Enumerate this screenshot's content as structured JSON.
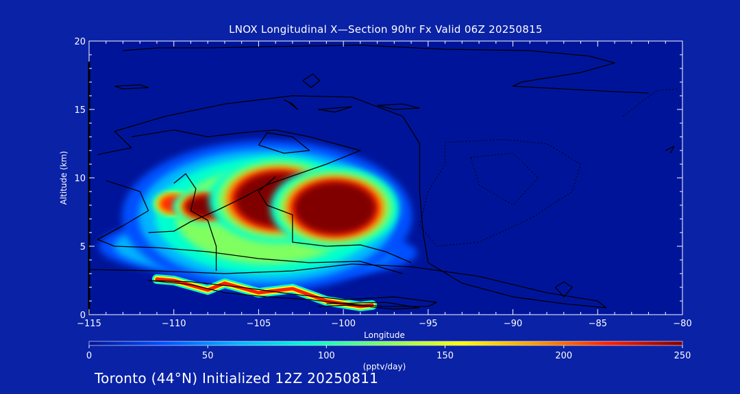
{
  "title": "LNOX Longitudinal X—Section 90hr  Fx Valid 06Z 20250815",
  "footer": "Toronto (44°N) Initialized 12Z 20250811",
  "colors": {
    "background": "#0a22a6",
    "field_background": "#00149a",
    "contour": "#000000",
    "frame": "#ffffff"
  },
  "chart_data": {
    "type": "heatmap",
    "xlabel": "Longitude",
    "ylabel": "Altitude (km)",
    "xlim": [
      -115,
      -80
    ],
    "ylim": [
      0,
      20
    ],
    "xticks": [
      -115,
      -110,
      -105,
      -100,
      -95,
      -90,
      -85,
      -80
    ],
    "xtick_labels": [
      "−115",
      "−110",
      "−105",
      "−100",
      "−95",
      "−90",
      "−85",
      "−80"
    ],
    "yticks": [
      0,
      5,
      10,
      15,
      20
    ],
    "ytick_labels": [
      "0",
      "5",
      "10",
      "15",
      "20"
    ],
    "colorbar": {
      "label": "(pptv/day)",
      "range": [
        0,
        250
      ],
      "ticks": [
        0,
        50,
        100,
        150,
        200,
        250
      ],
      "tick_labels": [
        "0",
        "50",
        "100",
        "150",
        "200",
        "250"
      ],
      "colors": [
        "#00149a",
        "#0050ff",
        "#00b4ff",
        "#00ffd0",
        "#80ff60",
        "#ffff00",
        "#ff9a00",
        "#ff2000",
        "#800000"
      ]
    },
    "blobs": [
      {
        "lon": -103.8,
        "alt": 8.4,
        "rx": 2.6,
        "ry": 2.0,
        "value": 250
      },
      {
        "lon": -100.5,
        "alt": 7.8,
        "rx": 2.4,
        "ry": 1.9,
        "value": 250
      },
      {
        "lon": -108.0,
        "alt": 7.9,
        "rx": 1.3,
        "ry": 0.8,
        "value": 235
      },
      {
        "lon": -110.0,
        "alt": 8.1,
        "rx": 0.8,
        "ry": 0.6,
        "value": 225
      },
      {
        "lon": -104.5,
        "alt": 7.2,
        "rx": 5.4,
        "ry": 3.5,
        "value": 115
      },
      {
        "lon": -106.5,
        "alt": 5.0,
        "rx": 5.0,
        "ry": 1.4,
        "value": 95
      },
      {
        "lon": -102.0,
        "alt": 4.5,
        "rx": 4.0,
        "ry": 1.1,
        "value": 85
      }
    ],
    "surface_band": {
      "value": 225,
      "points": [
        [
          -111.0,
          2.6
        ],
        [
          -110.0,
          2.5
        ],
        [
          -108.0,
          1.8
        ],
        [
          -107.0,
          2.3
        ],
        [
          -105.0,
          1.6
        ],
        [
          -103.0,
          1.9
        ],
        [
          -101.0,
          1.0
        ],
        [
          -99.0,
          0.6
        ],
        [
          -98.3,
          0.7
        ]
      ]
    },
    "contours_solid": [
      [
        [
          -113.0,
          19.3
        ],
        [
          -111.0,
          19.5
        ],
        [
          -108.0,
          19.5
        ],
        [
          -104.0,
          19.6
        ],
        [
          -99.0,
          19.7
        ],
        [
          -94.0,
          19.4
        ],
        [
          -89.0,
          19.3
        ],
        [
          -85.5,
          18.9
        ],
        [
          -84.0,
          18.4
        ],
        [
          -86.0,
          17.7
        ],
        [
          -89.5,
          17.0
        ],
        [
          -90.0,
          16.7
        ],
        [
          -87.0,
          16.5
        ],
        [
          -84.0,
          16.3
        ],
        [
          -82.0,
          16.2
        ]
      ],
      [
        [
          -114.5,
          11.7
        ],
        [
          -112.5,
          12.2
        ],
        [
          -113.5,
          13.4
        ],
        [
          -110.5,
          14.5
        ],
        [
          -107.0,
          15.4
        ],
        [
          -103.0,
          16.0
        ],
        [
          -99.5,
          15.9
        ],
        [
          -96.5,
          14.5
        ],
        [
          -95.5,
          12.5
        ],
        [
          -95.5,
          9.0
        ],
        [
          -95.3,
          6.0
        ],
        [
          -95.0,
          3.8
        ],
        [
          -93.0,
          2.3
        ],
        [
          -90.0,
          1.3
        ],
        [
          -87.0,
          0.8
        ],
        [
          -84.5,
          0.5
        ],
        [
          -85.0,
          1.0
        ],
        [
          -88.0,
          1.6
        ],
        [
          -92.0,
          2.8
        ],
        [
          -96.0,
          3.5
        ],
        [
          -99.5,
          3.7
        ],
        [
          -103.0,
          3.2
        ],
        [
          -107.0,
          3.0
        ],
        [
          -111.0,
          3.2
        ],
        [
          -115.0,
          3.3
        ]
      ],
      [
        [
          -114.0,
          9.8
        ],
        [
          -112.0,
          9.0
        ],
        [
          -111.5,
          7.6
        ],
        [
          -113.0,
          6.5
        ],
        [
          -114.5,
          5.5
        ],
        [
          -113.5,
          5.0
        ],
        [
          -111.0,
          4.9
        ],
        [
          -108.0,
          4.6
        ],
        [
          -105.0,
          4.1
        ],
        [
          -102.0,
          3.8
        ],
        [
          -99.0,
          3.9
        ],
        [
          -96.5,
          3.0
        ]
      ],
      [
        [
          -112.5,
          13.0
        ],
        [
          -110.0,
          13.5
        ],
        [
          -108.0,
          13.0
        ],
        [
          -106.0,
          13.3
        ],
        [
          -104.0,
          13.5
        ],
        [
          -102.0,
          13.0
        ],
        [
          -99.0,
          12.0
        ],
        [
          -101.0,
          11.0
        ],
        [
          -104.5,
          9.5
        ],
        [
          -106.0,
          8.5
        ],
        [
          -107.5,
          7.6
        ],
        [
          -109.0,
          6.8
        ],
        [
          -110.0,
          6.1
        ],
        [
          -111.5,
          6.0
        ]
      ],
      [
        [
          -110.0,
          9.6
        ],
        [
          -109.3,
          10.3
        ],
        [
          -108.7,
          9.2
        ],
        [
          -109.0,
          7.6
        ],
        [
          -108.0,
          6.9
        ],
        [
          -107.5,
          5.0
        ],
        [
          -107.5,
          3.2
        ]
      ],
      [
        [
          -104.0,
          10.1
        ],
        [
          -105.0,
          9.0
        ],
        [
          -104.5,
          8.0
        ],
        [
          -103.0,
          7.3
        ],
        [
          -103.0,
          5.3
        ],
        [
          -101.0,
          5.0
        ],
        [
          -99.0,
          5.1
        ],
        [
          -97.5,
          4.6
        ],
        [
          -96.0,
          3.8
        ]
      ],
      [
        [
          -111.5,
          2.5
        ],
        [
          -109.0,
          2.2
        ],
        [
          -107.0,
          1.6
        ],
        [
          -104.5,
          1.3
        ],
        [
          -102.0,
          1.1
        ],
        [
          -100.0,
          0.8
        ],
        [
          -97.5,
          0.6
        ],
        [
          -95.0,
          0.6
        ],
        [
          -94.5,
          0.9
        ],
        [
          -97.0,
          1.3
        ],
        [
          -100.0,
          1.1
        ],
        [
          -103.0,
          1.5
        ],
        [
          -106.0,
          2.0
        ],
        [
          -109.0,
          2.4
        ],
        [
          -111.5,
          2.5
        ]
      ],
      [
        [
          -101.5,
          0.6
        ],
        [
          -99.5,
          0.7
        ],
        [
          -97.0,
          0.4
        ],
        [
          -95.5,
          0.5
        ],
        [
          -97.5,
          0.9
        ],
        [
          -101.0,
          0.8
        ]
      ],
      [
        [
          -105.0,
          12.4
        ],
        [
          -104.5,
          13.3
        ],
        [
          -103.0,
          13.0
        ],
        [
          -102.0,
          12.0
        ],
        [
          -103.5,
          11.8
        ],
        [
          -105.0,
          12.4
        ]
      ],
      [
        [
          -113.5,
          16.7
        ],
        [
          -112.0,
          16.8
        ],
        [
          -111.5,
          16.6
        ],
        [
          -113.0,
          16.5
        ],
        [
          -113.5,
          16.7
        ]
      ],
      [
        [
          -102.4,
          17.1
        ],
        [
          -101.8,
          17.6
        ],
        [
          -101.4,
          17.1
        ],
        [
          -101.9,
          16.6
        ],
        [
          -102.4,
          17.1
        ]
      ],
      [
        [
          -103.5,
          15.7
        ],
        [
          -103.0,
          15.4
        ],
        [
          -102.7,
          15.0
        ],
        [
          -103.3,
          15.6
        ]
      ],
      [
        [
          -101.5,
          15.0
        ],
        [
          -99.5,
          15.2
        ],
        [
          -100.5,
          14.8
        ],
        [
          -101.5,
          15.0
        ]
      ],
      [
        [
          -98.0,
          15.3
        ],
        [
          -96.5,
          15.4
        ],
        [
          -95.5,
          15.1
        ],
        [
          -97.0,
          15.0
        ],
        [
          -98.0,
          15.3
        ]
      ],
      [
        [
          -87.5,
          2.0
        ],
        [
          -87.0,
          2.4
        ],
        [
          -86.5,
          2.0
        ],
        [
          -87.0,
          1.3
        ],
        [
          -87.5,
          2.0
        ]
      ],
      [
        [
          -81.0,
          12.0
        ],
        [
          -80.5,
          12.3
        ],
        [
          -80.7,
          11.8
        ]
      ]
    ],
    "contours_dashed": [
      [
        [
          -94.0,
          12.6
        ],
        [
          -90.5,
          12.8
        ],
        [
          -88.0,
          12.5
        ],
        [
          -86.0,
          11.0
        ],
        [
          -86.5,
          9.0
        ],
        [
          -89.0,
          7.0
        ],
        [
          -92.0,
          5.3
        ],
        [
          -94.5,
          5.0
        ],
        [
          -95.5,
          6.5
        ],
        [
          -95.0,
          9.0
        ],
        [
          -94.0,
          11.0
        ],
        [
          -94.0,
          12.6
        ]
      ],
      [
        [
          -83.5,
          14.5
        ],
        [
          -81.5,
          16.4
        ],
        [
          -80.2,
          16.5
        ]
      ],
      [
        [
          -92.5,
          11.5
        ],
        [
          -90.0,
          11.8
        ],
        [
          -88.5,
          10.0
        ],
        [
          -90.0,
          8.0
        ],
        [
          -92.0,
          9.5
        ],
        [
          -92.5,
          11.5
        ]
      ]
    ]
  }
}
